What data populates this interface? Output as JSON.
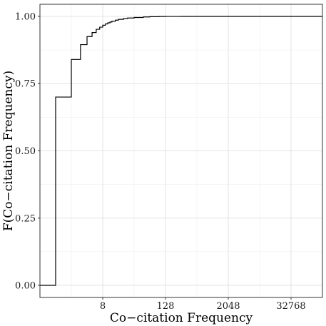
{
  "chart_data": {
    "type": "line",
    "title": "",
    "xlabel": "Co−citation Frequency",
    "ylabel": "F(Co−citation Frequency)",
    "x_scale": "log2",
    "xlim": [
      0.5,
      131072
    ],
    "ylim": [
      0,
      1
    ],
    "x_ticks": [
      8,
      128,
      2048,
      32768
    ],
    "x_tick_labels": [
      "8",
      "128",
      "2048",
      "32768"
    ],
    "y_ticks": [
      0,
      0.25,
      0.5,
      0.75,
      1
    ],
    "y_tick_labels": [
      "0.00",
      "0.25",
      "0.50",
      "0.75",
      "1.00"
    ],
    "grid": true,
    "legend": "none",
    "series": [
      {
        "step": "post",
        "x": [
          0.5,
          1,
          2,
          3,
          4,
          5,
          6,
          7,
          8,
          9,
          10,
          11,
          12,
          14,
          16,
          20,
          24,
          32,
          48,
          64,
          96,
          128,
          256,
          131072
        ],
        "y": [
          0,
          0.7,
          0.84,
          0.895,
          0.925,
          0.94,
          0.952,
          0.96,
          0.967,
          0.972,
          0.976,
          0.979,
          0.982,
          0.986,
          0.989,
          0.992,
          0.994,
          0.996,
          0.998,
          0.999,
          0.9995,
          0.9998,
          1.0,
          1.0
        ]
      }
    ]
  }
}
